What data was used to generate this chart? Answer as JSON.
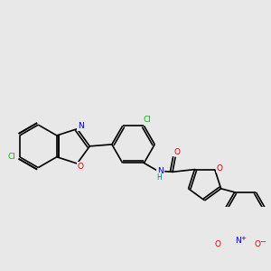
{
  "background_color": "#e8e8e8",
  "bond_color": "#000000",
  "atom_colors": {
    "Cl": "#00bb00",
    "N": "#0000cc",
    "O": "#dd0000",
    "C": "#000000",
    "H": "#008080"
  }
}
